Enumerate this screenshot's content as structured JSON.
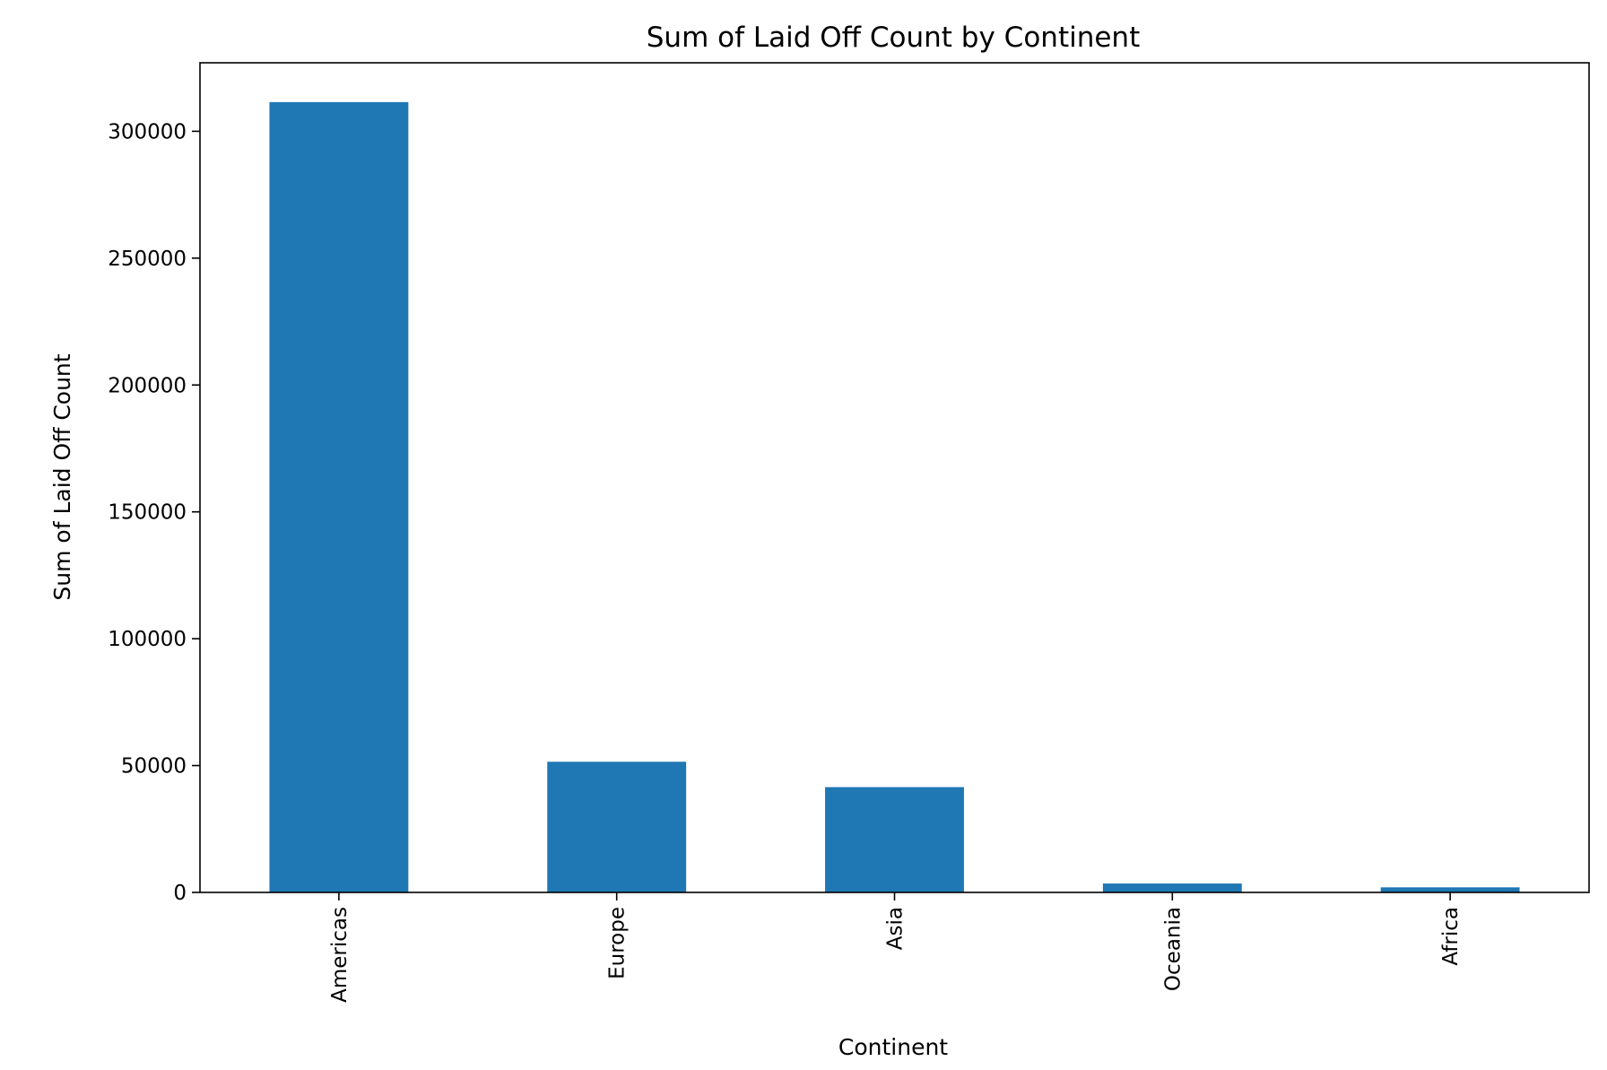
{
  "chart_data": {
    "type": "bar",
    "title": "Sum of Laid Off Count by Continent",
    "xlabel": "Continent",
    "ylabel": "Sum of Laid Off Count",
    "categories": [
      "Americas",
      "Europe",
      "Asia",
      "Oceania",
      "Africa"
    ],
    "values": [
      311500,
      51500,
      41500,
      3500,
      2000
    ],
    "ylim": [
      0,
      327000
    ],
    "yticks": [
      0,
      50000,
      100000,
      150000,
      200000,
      250000,
      300000
    ],
    "ytick_labels": [
      "0",
      "50000",
      "100000",
      "150000",
      "200000",
      "250000",
      "300000"
    ],
    "bar_color": "#1f77b4",
    "grid": false,
    "legend": false
  }
}
